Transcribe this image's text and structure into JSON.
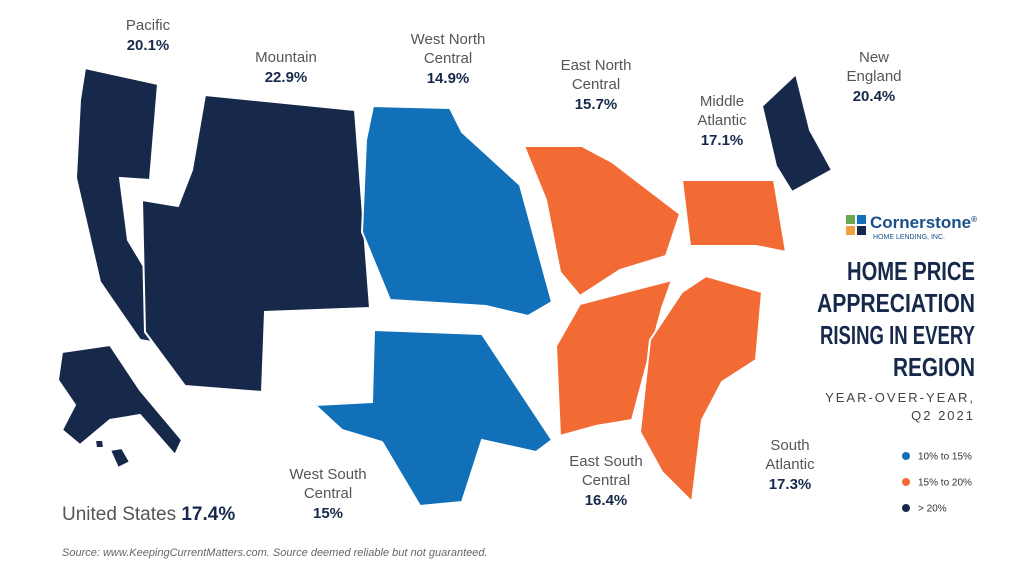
{
  "brand": {
    "name": "Cornerstone",
    "mark": "®",
    "tagline": "HOME LENDING, INC."
  },
  "title": [
    "HOME PRICE",
    "APPRECIATION",
    "RISING IN EVERY",
    "REGION"
  ],
  "subtitle": [
    "YEAR-OVER-YEAR,",
    "Q2 2021"
  ],
  "regions": [
    {
      "name": [
        "Pacific"
      ],
      "value": "20.1%",
      "color": "#17294b"
    },
    {
      "name": [
        "Mountain"
      ],
      "value": "22.9%",
      "color": "#17294b"
    },
    {
      "name": [
        "West North",
        "Central"
      ],
      "value": "14.9%",
      "color": "#1170b8"
    },
    {
      "name": [
        "East North",
        "Central"
      ],
      "value": "15.7%",
      "color": "#f26b35"
    },
    {
      "name": [
        "Middle",
        "Atlantic"
      ],
      "value": "17.1%",
      "color": "#f26b35"
    },
    {
      "name": [
        "New",
        "England"
      ],
      "value": "20.4%",
      "color": "#17294b"
    },
    {
      "name": [
        "West South",
        "Central"
      ],
      "value": "15%",
      "color": "#1170b8"
    },
    {
      "name": [
        "East South",
        "Central"
      ],
      "value": "16.4%",
      "color": "#f26b35"
    },
    {
      "name": [
        "South",
        "Atlantic"
      ],
      "value": "17.3%",
      "color": "#f26b35"
    }
  ],
  "national": {
    "name": "United States",
    "value": "17.4%"
  },
  "legend": [
    {
      "label": "10% to 15%",
      "color": "#1170b8"
    },
    {
      "label": "15% to 20%",
      "color": "#f26b35"
    },
    {
      "label": "> 20%",
      "color": "#17294b"
    }
  ],
  "source": "Source: www.KeepingCurrentMatters.com. Source deemed reliable but not guaranteed."
}
